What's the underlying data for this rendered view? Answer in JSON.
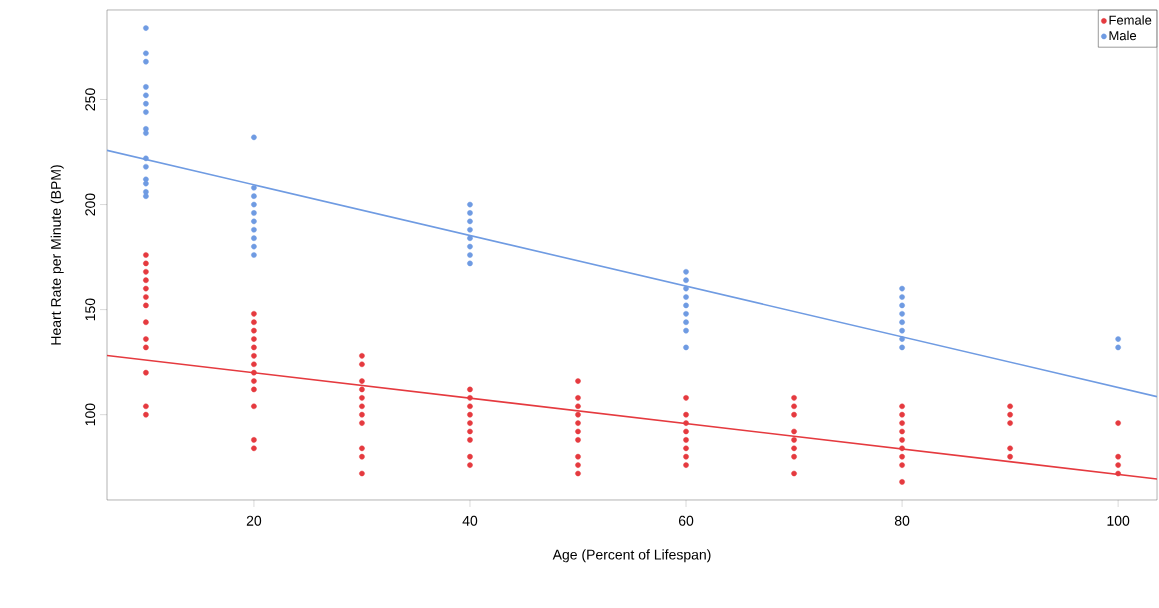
{
  "chart_data": {
    "type": "scatter",
    "xlabel": "Age (Percent of Lifespan)",
    "ylabel": "Heart Rate per Minute (BPM)",
    "xlim": [
      6.4,
      103.6
    ],
    "ylim": [
      59.4,
      292.6
    ],
    "xticks": [
      20,
      40,
      60,
      80,
      100
    ],
    "yticks": [
      100,
      150,
      200,
      250
    ],
    "legend": "top right",
    "grid": false,
    "series": [
      {
        "name": "Female",
        "marker": "circle",
        "color": "#e53a3f",
        "x": [
          10,
          10,
          10,
          10,
          10,
          10,
          10,
          10,
          10,
          10,
          10,
          10,
          10,
          20,
          20,
          20,
          20,
          20,
          20,
          20,
          20,
          20,
          20,
          20,
          20,
          20,
          30,
          30,
          30,
          30,
          30,
          30,
          30,
          30,
          30,
          30,
          30,
          40,
          40,
          40,
          40,
          40,
          40,
          40,
          40,
          40,
          50,
          50,
          50,
          50,
          50,
          50,
          50,
          50,
          50,
          50,
          60,
          60,
          60,
          60,
          60,
          60,
          60,
          60,
          70,
          70,
          70,
          70,
          70,
          70,
          70,
          70,
          80,
          80,
          80,
          80,
          80,
          80,
          80,
          80,
          80,
          90,
          90,
          90,
          90,
          90,
          100,
          100,
          100,
          100
        ],
        "values": [
          176,
          172,
          168,
          164,
          160,
          156,
          152,
          144,
          136,
          132,
          120,
          104,
          100,
          148,
          144,
          140,
          136,
          132,
          128,
          124,
          120,
          116,
          112,
          104,
          88,
          84,
          128,
          124,
          116,
          112,
          108,
          104,
          100,
          96,
          84,
          80,
          72,
          112,
          108,
          104,
          100,
          96,
          92,
          88,
          80,
          76,
          116,
          108,
          104,
          100,
          96,
          92,
          88,
          80,
          76,
          72,
          108,
          100,
          96,
          92,
          88,
          84,
          80,
          76,
          108,
          104,
          100,
          92,
          88,
          84,
          80,
          72,
          104,
          100,
          96,
          92,
          88,
          84,
          80,
          76,
          68,
          104,
          100,
          96,
          84,
          80,
          96,
          80,
          76,
          72
        ]
      },
      {
        "name": "Male",
        "marker": "circle",
        "color": "#6f9be2",
        "x": [
          10,
          10,
          10,
          10,
          10,
          10,
          10,
          10,
          10,
          10,
          10,
          10,
          10,
          10,
          10,
          20,
          20,
          20,
          20,
          20,
          20,
          20,
          20,
          20,
          20,
          40,
          40,
          40,
          40,
          40,
          40,
          40,
          40,
          60,
          60,
          60,
          60,
          60,
          60,
          60,
          60,
          60,
          80,
          80,
          80,
          80,
          80,
          80,
          80,
          80,
          100,
          100
        ],
        "values": [
          284,
          272,
          268,
          256,
          252,
          248,
          244,
          236,
          234,
          222,
          218,
          212,
          210,
          206,
          204,
          232,
          208,
          204,
          200,
          196,
          192,
          188,
          184,
          180,
          176,
          200,
          196,
          192,
          188,
          184,
          180,
          176,
          172,
          168,
          164,
          160,
          156,
          152,
          148,
          144,
          140,
          132,
          160,
          156,
          152,
          148,
          144,
          140,
          136,
          132,
          136,
          132
        ]
      },
      {
        "type": "line",
        "marker": "none",
        "color": "#e53a3f",
        "x": [
          6.4,
          103.6
        ],
        "values": [
          128.2,
          69.4
        ]
      },
      {
        "type": "line",
        "marker": "none",
        "color": "#6f9be2",
        "x": [
          6.4,
          103.6
        ],
        "values": [
          225.8,
          108.6
        ]
      }
    ]
  }
}
